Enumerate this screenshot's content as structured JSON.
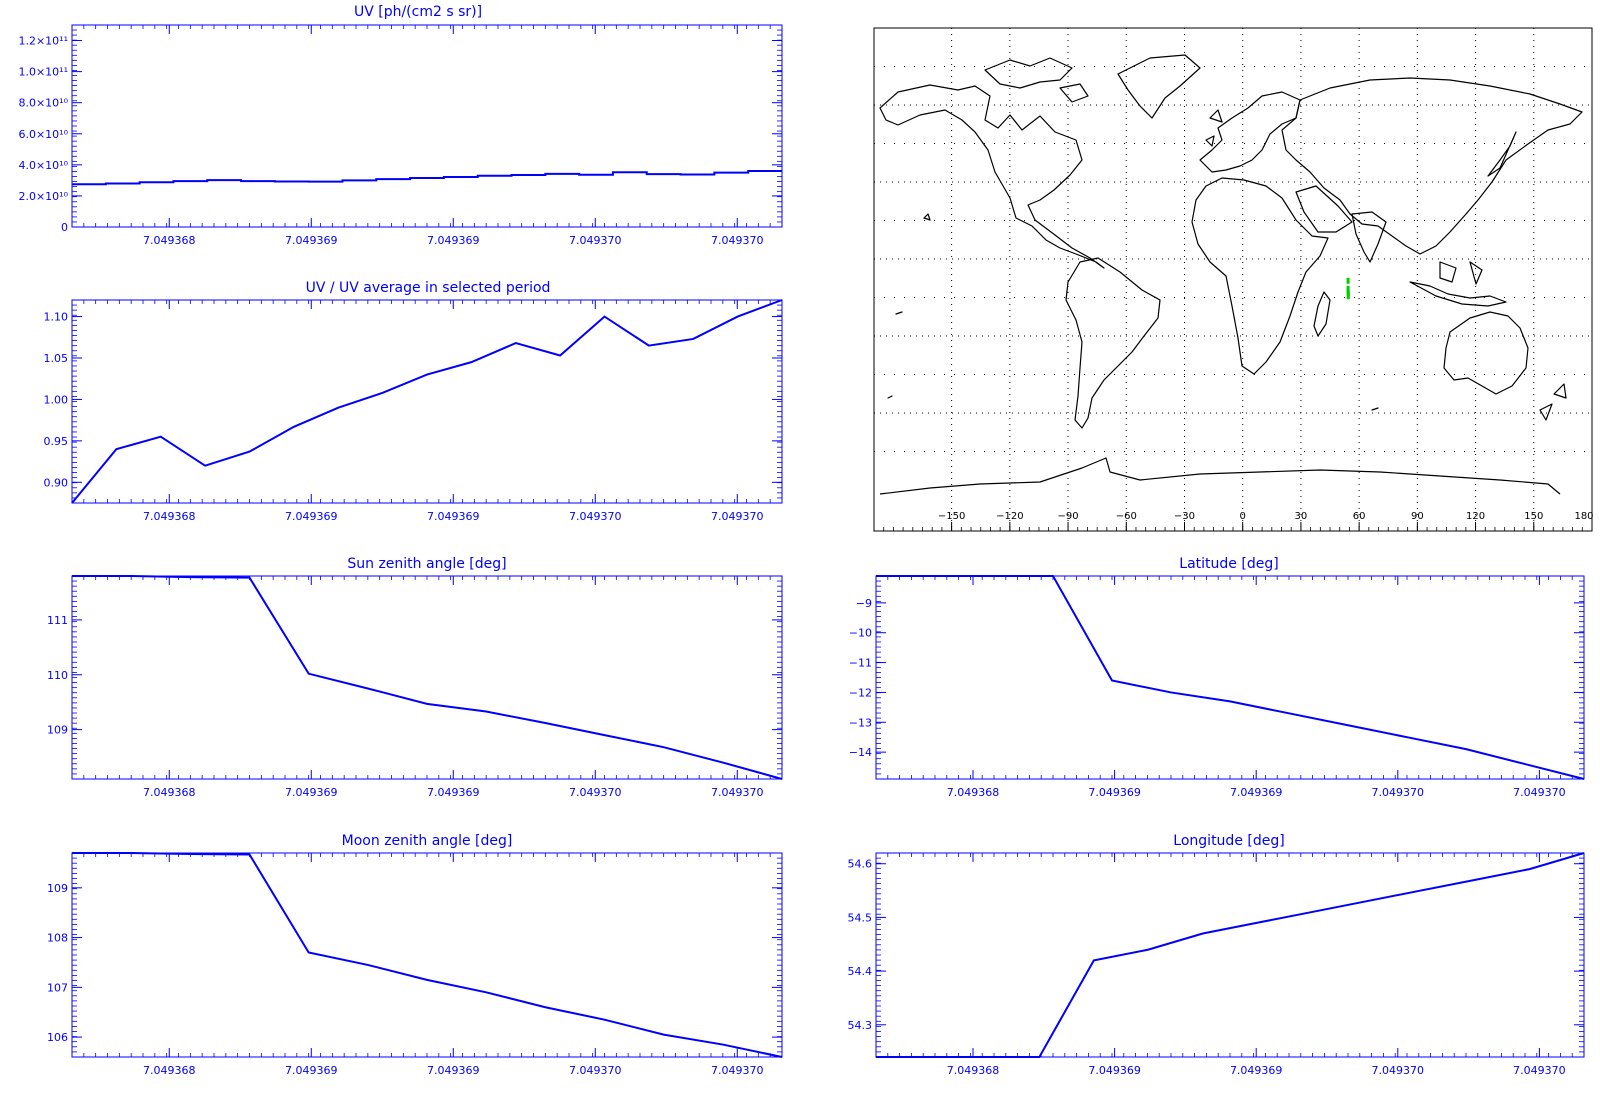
{
  "colors": {
    "axis": "#0000ff",
    "line": "#0000ff",
    "map": "#000000",
    "marker": "#00d000"
  },
  "chart_data": [
    {
      "id": "uv",
      "type": "line",
      "title": "UV [ph/(cm2 s sr)]",
      "xtick_labels": [
        "7.049368",
        "7.049369",
        "7.049369",
        "7.049370",
        "7.049370"
      ],
      "ytick_values": [
        0,
        20000000000,
        40000000000,
        60000000000,
        80000000000,
        100000000000,
        120000000000
      ],
      "ytick_labels": [
        "0",
        "2.0×10¹⁰",
        "4.0×10¹⁰",
        "6.0×10¹⁰",
        "8.0×10¹⁰",
        "1.0×10¹¹",
        "1.2×10¹¹"
      ],
      "ylim": [
        0,
        130000000000
      ],
      "y": [
        27500000000,
        28000000000,
        28800000000,
        29500000000,
        30200000000,
        29500000000,
        29300000000,
        29200000000,
        30000000000,
        30800000000,
        31500000000,
        32200000000,
        33000000000,
        33500000000,
        34200000000,
        33600000000,
        35200000000,
        34000000000,
        33800000000,
        35000000000,
        36000000000
      ]
    },
    {
      "id": "uv_ratio",
      "type": "line",
      "title": "UV / UV average in selected period",
      "xtick_labels": [
        "7.049368",
        "7.049369",
        "7.049369",
        "7.049370",
        "7.049370"
      ],
      "ytick_values": [
        0.9,
        0.95,
        1.0,
        1.05,
        1.1
      ],
      "ytick_labels": [
        "0.90",
        "0.95",
        "1.00",
        "1.05",
        "1.10"
      ],
      "ylim": [
        0.875,
        1.12
      ],
      "y": [
        0.875,
        0.94,
        0.955,
        0.92,
        0.937,
        0.967,
        0.99,
        1.008,
        1.03,
        1.045,
        1.068,
        1.053,
        1.1,
        1.065,
        1.073,
        1.1,
        1.12
      ]
    },
    {
      "id": "sza",
      "type": "line",
      "title": "Sun zenith angle [deg]",
      "xtick_labels": [
        "7.049368",
        "7.049369",
        "7.049369",
        "7.049370",
        "7.049370"
      ],
      "ytick_values": [
        109,
        110,
        111
      ],
      "ytick_labels": [
        "109",
        "110",
        "111"
      ],
      "ylim": [
        108.1,
        111.8
      ],
      "y": [
        111.8,
        111.8,
        111.78,
        111.77,
        110.02,
        109.75,
        109.47,
        109.33,
        109.12,
        108.9,
        108.68,
        108.4,
        108.1
      ]
    },
    {
      "id": "lat",
      "type": "line",
      "title": "Latitude [deg]",
      "xtick_labels": [
        "7.049368",
        "7.049369",
        "7.049369",
        "7.049370",
        "7.049370"
      ],
      "ytick_values": [
        -14,
        -13,
        -12,
        -11,
        -10,
        -9
      ],
      "ytick_labels": [
        "−14",
        "−13",
        "−12",
        "−11",
        "−10",
        "−9"
      ],
      "ylim": [
        -14.9,
        -8.1
      ],
      "y": [
        -8.1,
        -8.1,
        -8.1,
        -8.1,
        -11.6,
        -12.0,
        -12.3,
        -12.7,
        -13.1,
        -13.5,
        -13.9,
        -14.4,
        -14.9
      ]
    },
    {
      "id": "mza",
      "type": "line",
      "title": "Moon zenith angle [deg]",
      "xtick_labels": [
        "7.049368",
        "7.049369",
        "7.049369",
        "7.049370",
        "7.049370"
      ],
      "ytick_values": [
        106,
        107,
        108,
        109
      ],
      "ytick_labels": [
        "106",
        "107",
        "108",
        "109"
      ],
      "ylim": [
        105.6,
        109.7
      ],
      "y": [
        109.7,
        109.7,
        109.68,
        109.67,
        107.7,
        107.45,
        107.15,
        106.9,
        106.6,
        106.35,
        106.05,
        105.85,
        105.6
      ]
    },
    {
      "id": "lon",
      "type": "line",
      "title": "Longitude [deg]",
      "xtick_labels": [
        "7.049368",
        "7.049369",
        "7.049369",
        "7.049370",
        "7.049370"
      ],
      "ytick_values": [
        54.3,
        54.4,
        54.5,
        54.6
      ],
      "ytick_labels": [
        "54.3",
        "54.4",
        "54.5",
        "54.6"
      ],
      "ylim": [
        54.24,
        54.62
      ],
      "y": [
        54.24,
        54.24,
        54.24,
        54.24,
        54.42,
        54.44,
        54.47,
        54.49,
        54.51,
        54.53,
        54.55,
        54.57,
        54.59,
        54.62
      ]
    },
    {
      "id": "map",
      "type": "scatter",
      "title": "",
      "xtick_labels": [
        "−150",
        "−120",
        "−90",
        "−60",
        "−30",
        "0",
        "30",
        "60",
        "90",
        "120",
        "150",
        "180"
      ],
      "grid": true,
      "x": [
        54.3,
        54.3,
        54.3,
        54.4,
        54.4
      ],
      "y": [
        -8.5,
        -11.6,
        -12.5,
        -13.5,
        -14.5
      ]
    }
  ]
}
